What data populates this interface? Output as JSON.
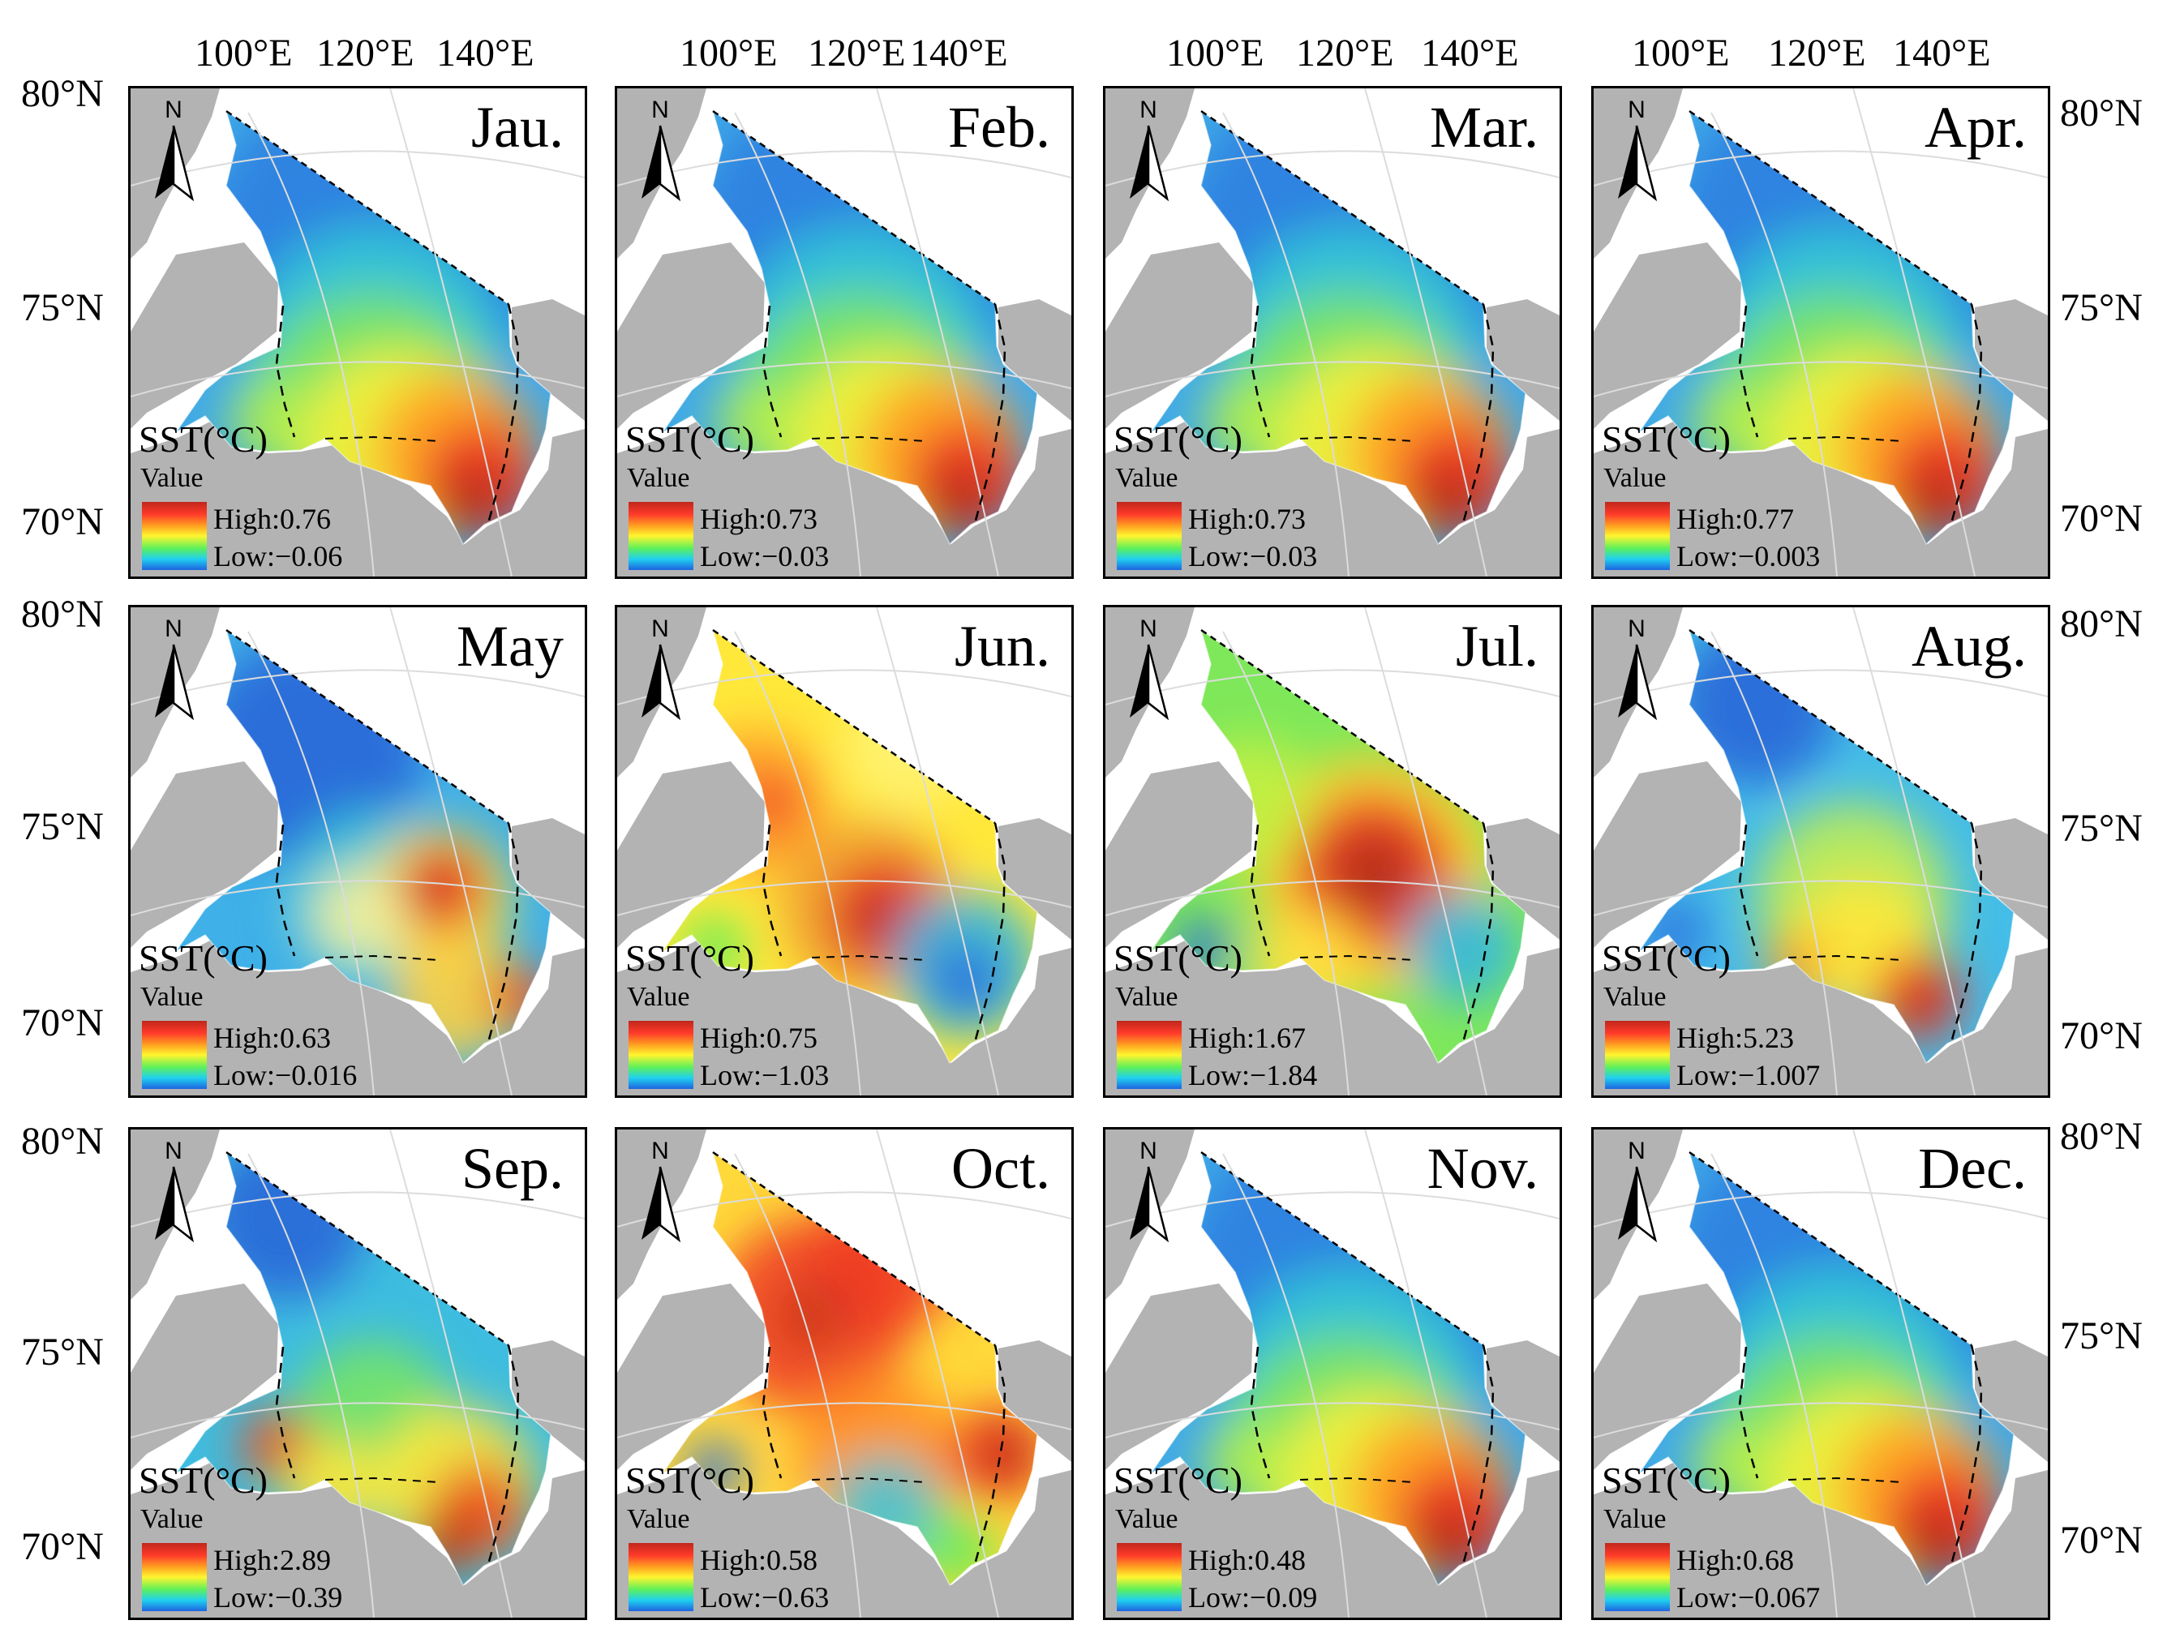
{
  "figure": {
    "lon_labels": [
      [
        "100°E",
        "120°E",
        "140°E"
      ],
      [
        "100°E",
        "120°E",
        "140°E"
      ],
      [
        "100°E",
        "120°E",
        "140°E"
      ],
      [
        "100°E",
        "120°E",
        "140°E"
      ]
    ],
    "lat_labels": [
      "80°N",
      "75°N",
      "70°N"
    ],
    "legend": {
      "title": "SST(°C)",
      "subtitle": "Value",
      "high_prefix": "High:",
      "low_prefix": "Low:"
    },
    "north_label": "N",
    "colors": {
      "high": "#c0271b",
      "mid": "#fff52f",
      "low": "#1e64e0",
      "land": "#b3b3b3",
      "ocean": "#ffffff"
    }
  },
  "panels": [
    {
      "month": "Jau.",
      "high": "High:0.76",
      "low": "Low:−0.06",
      "pattern": "winter"
    },
    {
      "month": "Feb.",
      "high": "High:0.73",
      "low": "Low:−0.03",
      "pattern": "winter"
    },
    {
      "month": "Mar.",
      "high": "High:0.73",
      "low": "Low:−0.03",
      "pattern": "winter"
    },
    {
      "month": "Apr.",
      "high": "High:0.77",
      "low": "Low:−0.003",
      "pattern": "winter"
    },
    {
      "month": "May",
      "high": "High:0.63",
      "low": "Low:−0.016",
      "pattern": "may"
    },
    {
      "month": "Jun.",
      "high": "High:0.75",
      "low": "Low:−1.03",
      "pattern": "jun"
    },
    {
      "month": "Jul.",
      "high": "High:1.67",
      "low": "Low:−1.84",
      "pattern": "jul"
    },
    {
      "month": "Aug.",
      "high": "High:5.23",
      "low": "Low:−1.007",
      "pattern": "aug"
    },
    {
      "month": "Sep.",
      "high": "High:2.89",
      "low": "Low:−0.39",
      "pattern": "sep"
    },
    {
      "month": "Oct.",
      "high": "High:0.58",
      "low": "Low:−0.63",
      "pattern": "oct"
    },
    {
      "month": "Nov.",
      "high": "High:0.48",
      "low": "Low:−0.09",
      "pattern": "winter"
    },
    {
      "month": "Dec.",
      "high": "High:0.68",
      "low": "Low:−0.067",
      "pattern": "winter"
    }
  ]
}
